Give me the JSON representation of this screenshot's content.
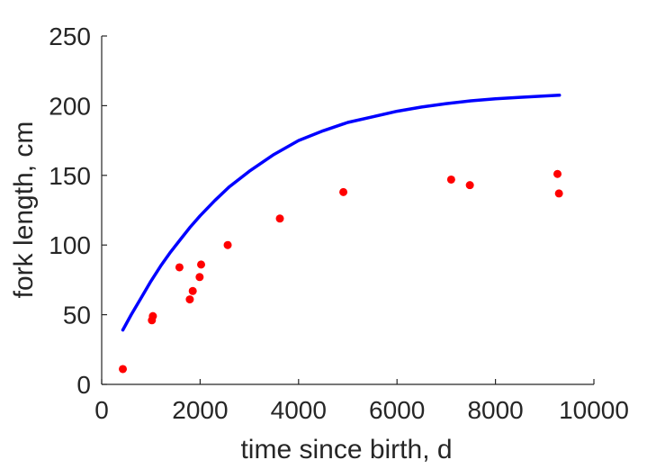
{
  "chart_data": {
    "type": "scatter",
    "xlabel": "time since birth, d",
    "ylabel": "fork length, cm",
    "xlim": [
      0,
      10000
    ],
    "ylim": [
      0,
      250
    ],
    "xticks": [
      0,
      2000,
      4000,
      6000,
      8000,
      10000
    ],
    "yticks": [
      0,
      50,
      100,
      150,
      200,
      250
    ],
    "xtick_labels": [
      "0",
      "2000",
      "4000",
      "6000",
      "8000",
      "10000"
    ],
    "ytick_labels": [
      "0",
      "50",
      "100",
      "150",
      "200",
      "250"
    ],
    "grid": false,
    "series": [
      {
        "type": "scatter",
        "color": "#ff0000",
        "points": [
          {
            "x": 430,
            "y": 11
          },
          {
            "x": 1020,
            "y": 46
          },
          {
            "x": 1040,
            "y": 49
          },
          {
            "x": 1580,
            "y": 84
          },
          {
            "x": 1790,
            "y": 61
          },
          {
            "x": 1850,
            "y": 67
          },
          {
            "x": 1990,
            "y": 77
          },
          {
            "x": 2020,
            "y": 86
          },
          {
            "x": 2560,
            "y": 100
          },
          {
            "x": 3620,
            "y": 119
          },
          {
            "x": 4910,
            "y": 138
          },
          {
            "x": 7100,
            "y": 147
          },
          {
            "x": 7480,
            "y": 143
          },
          {
            "x": 9260,
            "y": 151
          },
          {
            "x": 9290,
            "y": 137
          }
        ]
      },
      {
        "type": "line",
        "color": "#0000ff",
        "points": [
          {
            "x": 430,
            "y": 39
          },
          {
            "x": 600,
            "y": 50
          },
          {
            "x": 800,
            "y": 62
          },
          {
            "x": 1000,
            "y": 74
          },
          {
            "x": 1200,
            "y": 85
          },
          {
            "x": 1400,
            "y": 95
          },
          {
            "x": 1600,
            "y": 104
          },
          {
            "x": 1800,
            "y": 113
          },
          {
            "x": 2000,
            "y": 121
          },
          {
            "x": 2300,
            "y": 132
          },
          {
            "x": 2600,
            "y": 142
          },
          {
            "x": 3000,
            "y": 153
          },
          {
            "x": 3500,
            "y": 165
          },
          {
            "x": 4000,
            "y": 175
          },
          {
            "x": 4500,
            "y": 182
          },
          {
            "x": 5000,
            "y": 188
          },
          {
            "x": 5500,
            "y": 192
          },
          {
            "x": 6000,
            "y": 196
          },
          {
            "x": 6500,
            "y": 199
          },
          {
            "x": 7000,
            "y": 201.5
          },
          {
            "x": 7500,
            "y": 203.5
          },
          {
            "x": 8000,
            "y": 205
          },
          {
            "x": 8500,
            "y": 206
          },
          {
            "x": 9000,
            "y": 207
          },
          {
            "x": 9300,
            "y": 207.5
          }
        ]
      }
    ]
  }
}
